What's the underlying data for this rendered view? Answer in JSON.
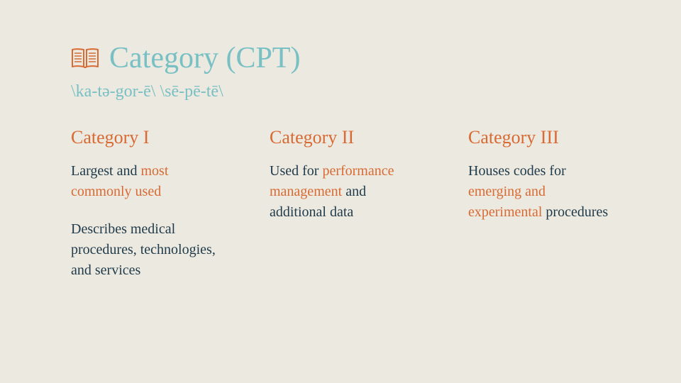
{
  "colors": {
    "background": "#ece9e0",
    "teal": "#78c0c4",
    "orange": "#d86a33",
    "darkText": "#1f3a4a"
  },
  "typography": {
    "title_fontsize": 42,
    "pronunciation_fontsize": 24,
    "column_title_fontsize": 26,
    "body_fontsize": 20
  },
  "header": {
    "icon": "book-open-icon",
    "title": "Category (CPT)",
    "pronunciation": "\\ka-tə-gor-ē\\ \\sē-pē-tē\\"
  },
  "columns": [
    {
      "title": "Category I",
      "segments": [
        [
          {
            "text": "Largest and ",
            "highlight": false
          },
          {
            "text": "most commonly used",
            "highlight": true
          }
        ],
        [
          {
            "text": "Describes medical procedures, technologies, and services",
            "highlight": false
          }
        ]
      ]
    },
    {
      "title": "Category II",
      "segments": [
        [
          {
            "text": "Used for ",
            "highlight": false
          },
          {
            "text": "performance management",
            "highlight": true
          },
          {
            "text": " and additional data",
            "highlight": false
          }
        ]
      ]
    },
    {
      "title": "Category III",
      "segments": [
        [
          {
            "text": "Houses codes for ",
            "highlight": false
          },
          {
            "text": "emerging and experimental",
            "highlight": true
          },
          {
            "text": " procedures",
            "highlight": false
          }
        ]
      ]
    }
  ]
}
